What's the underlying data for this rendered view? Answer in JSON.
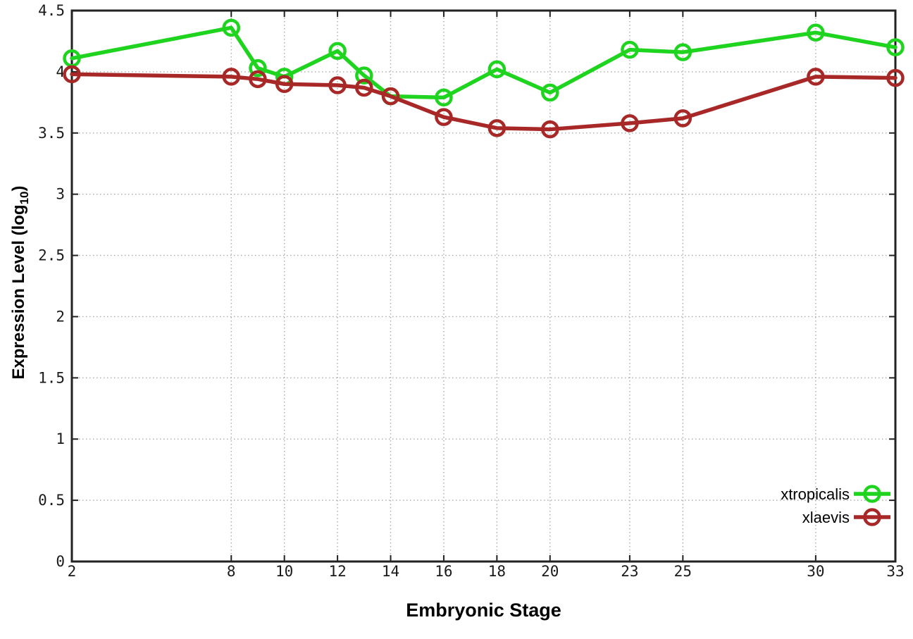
{
  "chart_data": {
    "type": "line",
    "title": "",
    "xlabel": "Embryonic Stage",
    "ylabel": "Expression Level (log10)",
    "ylabel_parts": {
      "prefix": "Expression Level (log",
      "sub": "10",
      "suffix": ")"
    },
    "xlim": [
      2,
      33
    ],
    "ylim": [
      0,
      4.5
    ],
    "x_ticks": [
      2,
      8,
      10,
      12,
      14,
      16,
      18,
      20,
      23,
      25,
      30,
      33
    ],
    "x_tick_labels": [
      "2",
      "8",
      "10",
      "12",
      "14",
      "16",
      "18",
      "20",
      "23",
      "25",
      "30",
      "33"
    ],
    "y_ticks": [
      0,
      0.5,
      1,
      1.5,
      2,
      2.5,
      3,
      3.5,
      4,
      4.5
    ],
    "y_tick_labels": [
      "0",
      "0.5",
      "1",
      "1.5",
      "2",
      "2.5",
      "3",
      "3.5",
      "4",
      "4.5"
    ],
    "grid": true,
    "legend_position": "bottom-right",
    "x": [
      2,
      8,
      9,
      10,
      12,
      13,
      14,
      16,
      18,
      20,
      23,
      25,
      30,
      33
    ],
    "series": [
      {
        "name": "xtropicalis",
        "color": "#1fd41f",
        "marker": "open-circle",
        "values": [
          4.11,
          4.36,
          4.03,
          3.96,
          4.17,
          3.97,
          3.8,
          3.79,
          4.02,
          3.83,
          4.18,
          4.16,
          4.32,
          4.2
        ]
      },
      {
        "name": "xlaevis",
        "color": "#a82828",
        "marker": "open-circle",
        "values": [
          3.98,
          3.96,
          3.94,
          3.9,
          3.89,
          3.87,
          3.8,
          3.63,
          3.54,
          3.53,
          3.58,
          3.62,
          3.96,
          3.95
        ]
      }
    ],
    "colors": {
      "border": "#222222",
      "grid": "#aaaaaa",
      "tick_text": "#1a1a1a",
      "legend_text": "#000000",
      "background": "#ffffff"
    }
  }
}
